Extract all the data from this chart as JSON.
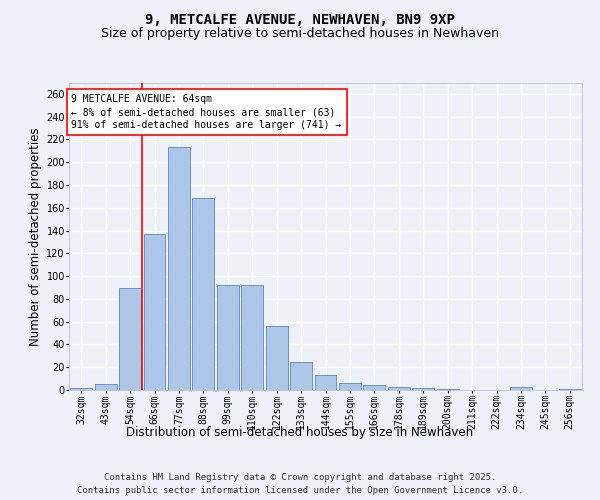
{
  "title_line1": "9, METCALFE AVENUE, NEWHAVEN, BN9 9XP",
  "title_line2": "Size of property relative to semi-detached houses in Newhaven",
  "xlabel": "Distribution of semi-detached houses by size in Newhaven",
  "ylabel": "Number of semi-detached properties",
  "categories": [
    "32sqm",
    "43sqm",
    "54sqm",
    "66sqm",
    "77sqm",
    "88sqm",
    "99sqm",
    "110sqm",
    "122sqm",
    "133sqm",
    "144sqm",
    "155sqm",
    "166sqm",
    "178sqm",
    "189sqm",
    "200sqm",
    "211sqm",
    "222sqm",
    "234sqm",
    "245sqm",
    "256sqm"
  ],
  "values": [
    2,
    5,
    90,
    137,
    213,
    169,
    92,
    92,
    56,
    25,
    13,
    6,
    4,
    3,
    2,
    1,
    0,
    0,
    3,
    0,
    1
  ],
  "bar_color": "#aec6e8",
  "bar_edge_color": "#4472c4",
  "vline_color": "red",
  "annotation_text": "9 METCALFE AVENUE: 64sqm\n← 8% of semi-detached houses are smaller (63)\n91% of semi-detached houses are larger (741) →",
  "annotation_box_color": "white",
  "annotation_box_edge_color": "red",
  "ylim": [
    0,
    270
  ],
  "yticks": [
    0,
    20,
    40,
    60,
    80,
    100,
    120,
    140,
    160,
    180,
    200,
    220,
    240,
    260
  ],
  "background_color": "#eef2f8",
  "grid_color": "white",
  "footer_line1": "Contains HM Land Registry data © Crown copyright and database right 2025.",
  "footer_line2": "Contains public sector information licensed under the Open Government Licence v3.0.",
  "title_fontsize": 10,
  "subtitle_fontsize": 9,
  "axis_label_fontsize": 8.5,
  "tick_fontsize": 7,
  "annotation_fontsize": 7,
  "footer_fontsize": 6.5
}
